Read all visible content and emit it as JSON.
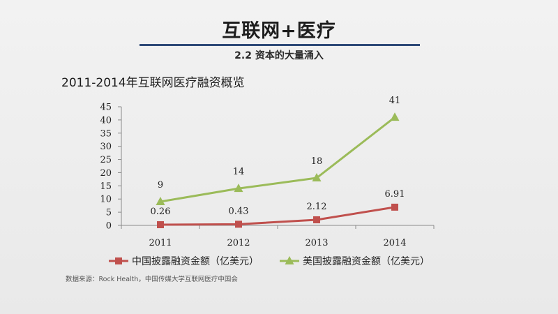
{
  "slide": {
    "title": "互联网+医疗",
    "subtitle": "2.2 资本的大量涌入",
    "source": "数据来源：Rock Health，中国传媒大学互联网医疗中国会"
  },
  "chart_data": {
    "type": "line",
    "title": "2011-2014年互联网医疗融资概览",
    "xlabel": "",
    "ylabel": "",
    "categories": [
      "2011",
      "2012",
      "2013",
      "2014"
    ],
    "ylim": [
      0,
      45
    ],
    "yticks": [
      "0",
      "5",
      "10",
      "15",
      "20",
      "25",
      "30",
      "35",
      "40",
      "45"
    ],
    "legend_position": "bottom",
    "grid": false,
    "series": [
      {
        "name": "中国披露融资金额（亿美元）",
        "values": [
          0.26,
          0.43,
          2.12,
          6.91
        ],
        "labels": [
          "0.26",
          "0.43",
          "2.12",
          "6.91"
        ],
        "color": "#c0504d",
        "marker": "square"
      },
      {
        "name": "美国披露融资金额（亿美元）",
        "values": [
          9,
          14,
          18,
          41
        ],
        "labels": [
          "9",
          "14",
          "18",
          "41"
        ],
        "color": "#9bbb59",
        "marker": "triangle"
      }
    ]
  }
}
